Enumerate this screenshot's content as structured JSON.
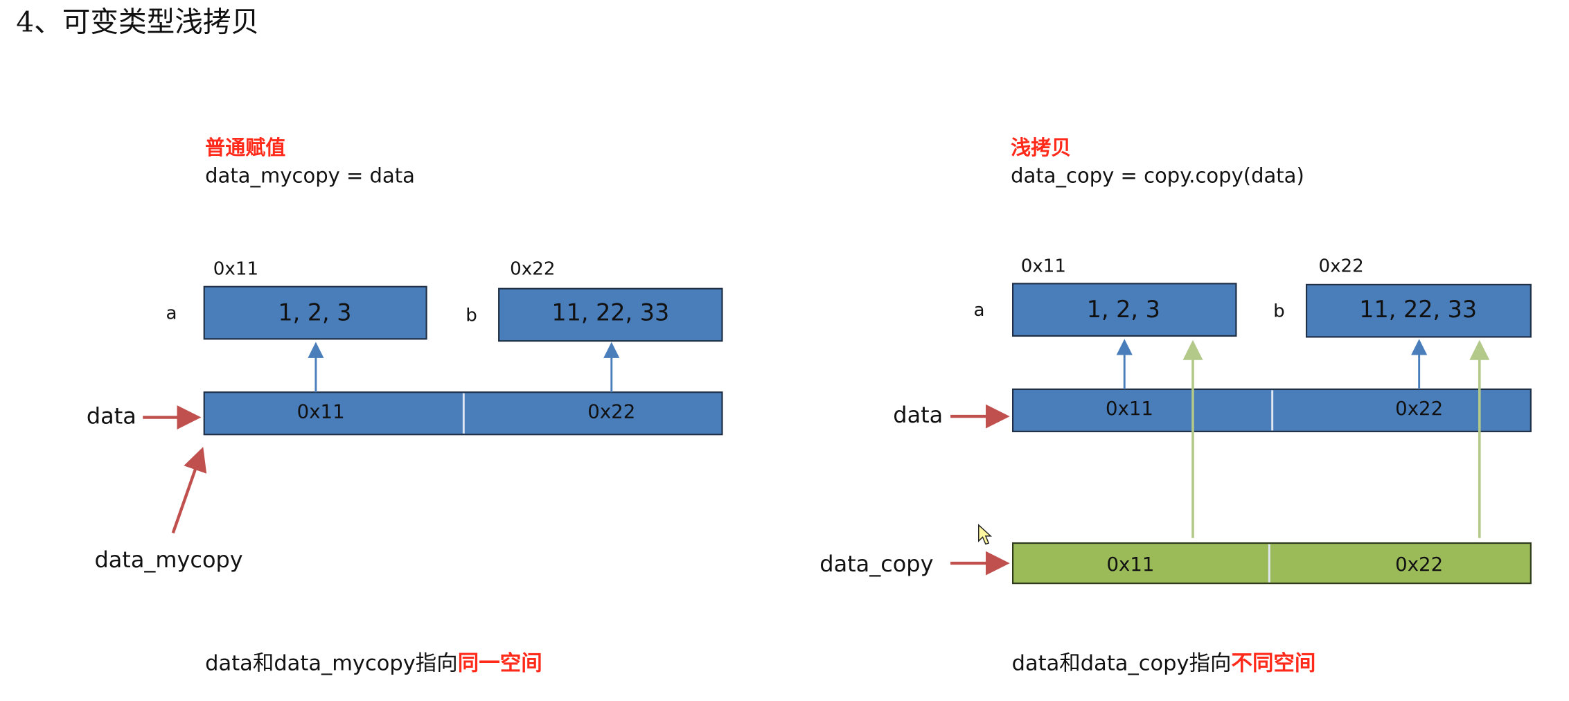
{
  "header": {
    "title": "4、可变类型浅拷贝"
  },
  "left": {
    "heading": "普通赋值",
    "code": "data_mycopy = data",
    "addr_a": "0x11",
    "addr_b": "0x22",
    "label_a": "a",
    "label_b": "b",
    "box_a": "1, 2, 3",
    "box_b": "11, 22, 33",
    "var": "data",
    "cells": [
      "0x11",
      "0x22"
    ],
    "alias": "data_mycopy",
    "caption": "data和data_mycopy指向",
    "caption_emph": "同一空间"
  },
  "right": {
    "heading": "浅拷贝",
    "code": "data_copy = copy.copy(data)",
    "addr_a": "0x11",
    "addr_b": "0x22",
    "label_a": "a",
    "label_b": "b",
    "box_a": "1, 2, 3",
    "box_b": "11, 22, 33",
    "var": "data",
    "cells": [
      "0x11",
      "0x22"
    ],
    "copy_var": "data_copy",
    "copy_cells": [
      "0x11",
      "0x22"
    ],
    "caption": "data和data_copy指向",
    "caption_emph": "不同空间"
  }
}
